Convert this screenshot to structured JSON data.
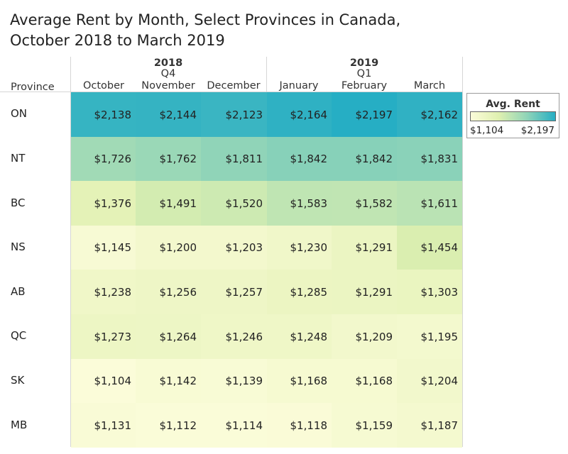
{
  "title": "Average Rent by Month, Select Provinces in Canada, October 2018 to March 2019",
  "header": {
    "row_label": "Province",
    "groups": [
      {
        "year": "2018",
        "quarter": "Q4"
      },
      {
        "year": "2019",
        "quarter": "Q1"
      }
    ],
    "months": [
      "October",
      "November",
      "December",
      "January",
      "February",
      "March"
    ]
  },
  "legend": {
    "title": "Avg. Rent",
    "min_label": "$1,104",
    "max_label": "$2,197",
    "min": 1104,
    "max": 2197,
    "color_low": "#fbfcd9",
    "color_mid": "#dff0b0",
    "color_mid2": "#8fd4b8",
    "color_high": "#26aec4"
  },
  "chart_data": {
    "type": "heatmap",
    "title": "Average Rent by Month, Select Provinces in Canada, October 2018 to March 2019",
    "columns": [
      "October",
      "November",
      "December",
      "January",
      "February",
      "March"
    ],
    "rows": [
      "ON",
      "NT",
      "BC",
      "NS",
      "AB",
      "QC",
      "SK",
      "MB"
    ],
    "values": [
      [
        2138,
        2144,
        2123,
        2164,
        2197,
        2162
      ],
      [
        1726,
        1762,
        1811,
        1842,
        1842,
        1831
      ],
      [
        1376,
        1491,
        1520,
        1583,
        1582,
        1611
      ],
      [
        1145,
        1200,
        1203,
        1230,
        1291,
        1454
      ],
      [
        1238,
        1256,
        1257,
        1285,
        1291,
        1303
      ],
      [
        1273,
        1264,
        1246,
        1248,
        1209,
        1195
      ],
      [
        1104,
        1142,
        1139,
        1168,
        1168,
        1204
      ],
      [
        1131,
        1112,
        1114,
        1118,
        1159,
        1187
      ]
    ],
    "labels": [
      [
        "$2,138",
        "$2,144",
        "$2,123",
        "$2,164",
        "$2,197",
        "$2,162"
      ],
      [
        "$1,726",
        "$1,762",
        "$1,811",
        "$1,842",
        "$1,842",
        "$1,831"
      ],
      [
        "$1,376",
        "$1,491",
        "$1,520",
        "$1,583",
        "$1,582",
        "$1,611"
      ],
      [
        "$1,145",
        "$1,200",
        "$1,203",
        "$1,230",
        "$1,291",
        "$1,454"
      ],
      [
        "$1,238",
        "$1,256",
        "$1,257",
        "$1,285",
        "$1,291",
        "$1,303"
      ],
      [
        "$1,273",
        "$1,264",
        "$1,246",
        "$1,248",
        "$1,209",
        "$1,195"
      ],
      [
        "$1,104",
        "$1,142",
        "$1,139",
        "$1,168",
        "$1,168",
        "$1,204"
      ],
      [
        "$1,131",
        "$1,112",
        "$1,114",
        "$1,118",
        "$1,159",
        "$1,187"
      ]
    ]
  }
}
